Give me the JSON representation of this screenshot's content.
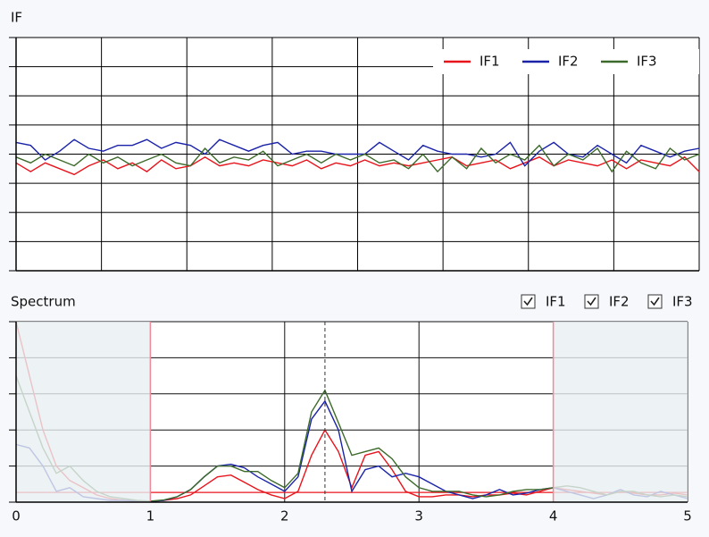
{
  "chart_data": [
    {
      "type": "line",
      "title": "IF",
      "grid": true,
      "legend": "upper right",
      "xtick_labels": false,
      "ytick_labels": false,
      "xlim": [
        0,
        8
      ],
      "xticks": [
        0,
        1,
        2,
        3,
        4,
        5,
        6,
        7,
        8
      ],
      "ylim": [
        -4,
        4
      ],
      "yticks": [
        -4,
        -3,
        -2,
        -1,
        0,
        1,
        2,
        3,
        4
      ],
      "series": [
        {
          "name": "IF1",
          "color": "#e8141c",
          "values": [
            -0.3,
            -0.6,
            -0.3,
            -0.5,
            -0.7,
            -0.4,
            -0.2,
            -0.5,
            -0.3,
            -0.6,
            -0.2,
            -0.5,
            -0.4,
            -0.1,
            -0.4,
            -0.3,
            -0.4,
            -0.2,
            -0.3,
            -0.4,
            -0.2,
            -0.5,
            -0.3,
            -0.4,
            -0.2,
            -0.4,
            -0.3,
            -0.4,
            -0.3,
            -0.2,
            -0.1,
            -0.4,
            -0.3,
            -0.2,
            -0.5,
            -0.3,
            -0.1,
            -0.4,
            -0.2,
            -0.3,
            -0.4,
            -0.2,
            -0.5,
            -0.2,
            -0.3,
            -0.4,
            -0.1,
            -0.6
          ]
        },
        {
          "name": "IF2",
          "color": "#1a23a8",
          "values": [
            0.4,
            0.3,
            -0.2,
            0.1,
            0.5,
            0.2,
            0.1,
            0.3,
            0.3,
            0.5,
            0.2,
            0.4,
            0.3,
            0.0,
            0.5,
            0.3,
            0.1,
            0.3,
            0.4,
            0.0,
            0.1,
            0.1,
            0.0,
            0.0,
            0.0,
            0.4,
            0.1,
            -0.2,
            0.3,
            0.1,
            0.0,
            0.0,
            -0.1,
            0.0,
            0.4,
            -0.4,
            0.1,
            0.4,
            0.0,
            -0.1,
            0.3,
            0.0,
            -0.3,
            0.3,
            0.1,
            -0.1,
            0.1,
            0.2
          ]
        },
        {
          "name": "IF3",
          "color": "#3c6a2a",
          "values": [
            -0.1,
            -0.3,
            0.0,
            -0.2,
            -0.4,
            0.0,
            -0.3,
            -0.1,
            -0.4,
            -0.2,
            0.0,
            -0.3,
            -0.4,
            0.2,
            -0.3,
            -0.1,
            -0.2,
            0.1,
            -0.4,
            -0.2,
            0.0,
            -0.3,
            0.0,
            -0.2,
            0.0,
            -0.3,
            -0.2,
            -0.5,
            0.0,
            -0.6,
            -0.1,
            -0.5,
            0.2,
            -0.3,
            0.0,
            -0.2,
            0.3,
            -0.4,
            0.0,
            -0.2,
            0.2,
            -0.6,
            0.1,
            -0.3,
            -0.5,
            0.2,
            -0.2,
            0.0
          ]
        }
      ]
    },
    {
      "type": "line",
      "title": "Spectrum",
      "grid": true,
      "legend": "checkboxes",
      "xtick_labels": true,
      "ytick_labels": false,
      "xlim": [
        0,
        5
      ],
      "xticks": [
        0,
        1,
        2,
        3,
        4,
        5
      ],
      "ylim": [
        0,
        5
      ],
      "yticks": [
        0,
        1,
        2,
        3,
        4,
        5
      ],
      "band": [
        1,
        4
      ],
      "marker": 2.3,
      "threshold": 0.27,
      "x": [
        0,
        0.1,
        0.2,
        0.3,
        0.4,
        0.5,
        0.6,
        0.7,
        0.8,
        0.9,
        1,
        1.1,
        1.2,
        1.3,
        1.4,
        1.5,
        1.6,
        1.7,
        1.8,
        1.9,
        2,
        2.1,
        2.2,
        2.3,
        2.4,
        2.5,
        2.6,
        2.7,
        2.8,
        2.9,
        3,
        3.1,
        3.2,
        3.3,
        3.4,
        3.5,
        3.6,
        3.7,
        3.8,
        3.9,
        4,
        4.1,
        4.2,
        4.3,
        4.4,
        4.5,
        4.6,
        4.7,
        4.8,
        4.9,
        5
      ],
      "series": [
        {
          "name": "IF1",
          "color": "#e8141c",
          "values": [
            5,
            3.5,
            2,
            1,
            0.6,
            0.4,
            0.2,
            0.1,
            0.05,
            0.02,
            0.02,
            0.05,
            0.1,
            0.2,
            0.45,
            0.7,
            0.75,
            0.55,
            0.35,
            0.2,
            0.1,
            0.3,
            1.3,
            2,
            1.4,
            0.4,
            1.3,
            1.4,
            0.9,
            0.3,
            0.15,
            0.15,
            0.2,
            0.2,
            0.15,
            0.2,
            0.2,
            0.25,
            0.2,
            0.3,
            0.4,
            0.35,
            0.3,
            0.25,
            0.2,
            0.3,
            0.25,
            0.2,
            0.2,
            0.25,
            0.2
          ]
        },
        {
          "name": "IF2",
          "color": "#1a23a8",
          "values": [
            1.6,
            1.5,
            1,
            0.3,
            0.4,
            0.15,
            0.1,
            0.05,
            0.05,
            0.03,
            0.02,
            0.05,
            0.15,
            0.35,
            0.7,
            1,
            1.05,
            0.95,
            0.7,
            0.5,
            0.3,
            0.7,
            2.3,
            2.8,
            2,
            0.3,
            0.9,
            1,
            0.7,
            0.8,
            0.7,
            0.5,
            0.3,
            0.2,
            0.1,
            0.2,
            0.35,
            0.2,
            0.25,
            0.35,
            0.4,
            0.3,
            0.2,
            0.1,
            0.2,
            0.35,
            0.2,
            0.15,
            0.3,
            0.2,
            0.1
          ]
        },
        {
          "name": "IF3",
          "color": "#3c6a2a",
          "values": [
            3.5,
            2.5,
            1.5,
            0.8,
            1,
            0.6,
            0.3,
            0.15,
            0.1,
            0.05,
            0.03,
            0.06,
            0.15,
            0.35,
            0.7,
            1,
            1,
            0.85,
            0.85,
            0.6,
            0.4,
            0.8,
            2.5,
            3.1,
            2.2,
            1.3,
            1.4,
            1.5,
            1.2,
            0.7,
            0.4,
            0.3,
            0.3,
            0.3,
            0.2,
            0.15,
            0.2,
            0.3,
            0.35,
            0.35,
            0.4,
            0.45,
            0.4,
            0.3,
            0.2,
            0.3,
            0.3,
            0.2,
            0.15,
            0.2,
            0.15
          ]
        }
      ]
    }
  ]
}
